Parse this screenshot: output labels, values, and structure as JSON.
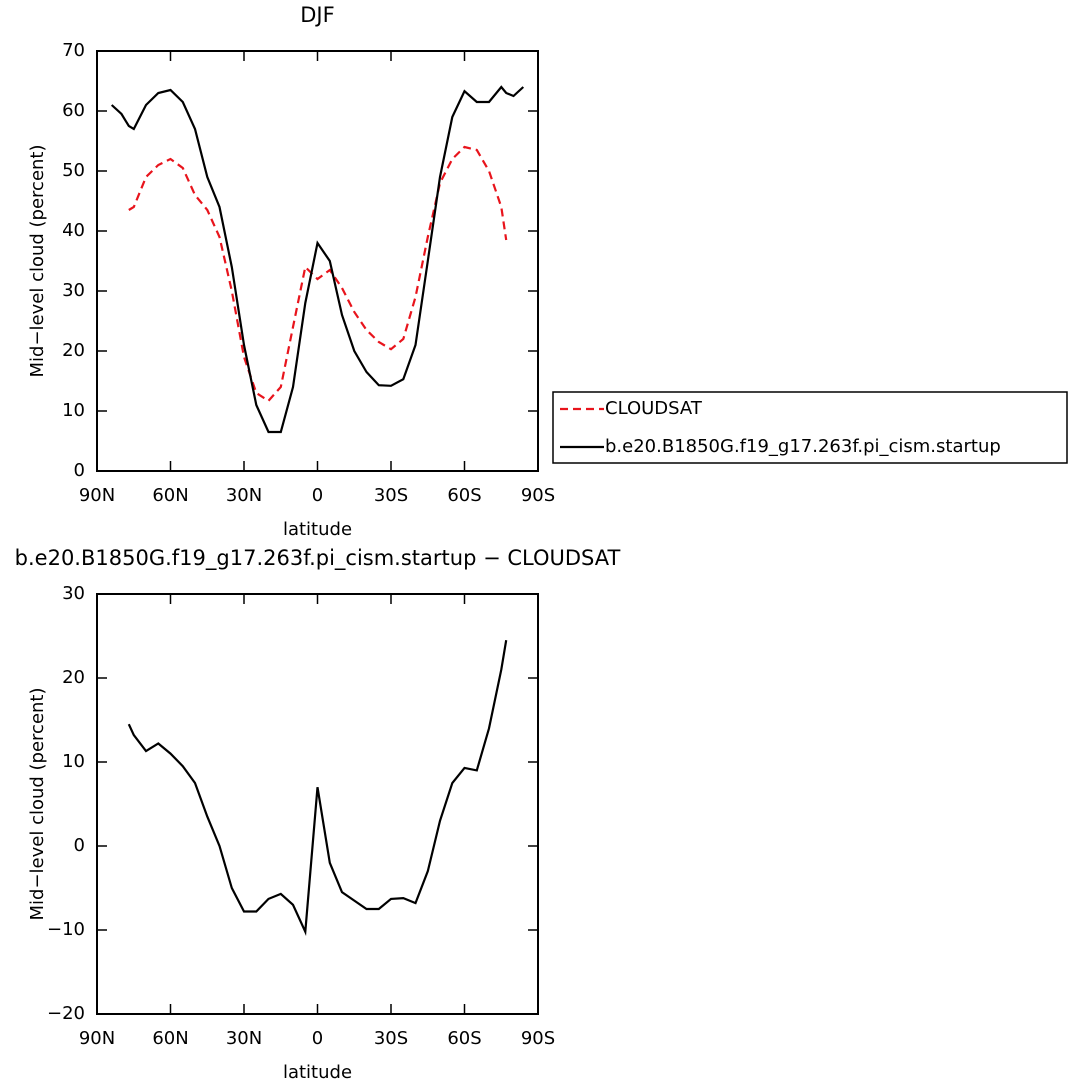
{
  "chart_data": [
    {
      "type": "line",
      "title": "DJF",
      "xlabel": "latitude",
      "ylabel": "Mid−level cloud (percent)",
      "x": [
        84,
        80,
        77,
        75,
        70,
        65,
        60,
        55,
        50,
        45,
        40,
        35,
        30,
        25,
        20,
        15,
        10,
        5,
        0,
        -5,
        -10,
        -15,
        -20,
        -25,
        -30,
        -35,
        -40,
        -45,
        -50,
        -55,
        -60,
        -65,
        -70,
        -75,
        -77,
        -80,
        -84
      ],
      "xlim": [
        90,
        -90
      ],
      "xticks": [
        {
          "value": 90,
          "label": "90N"
        },
        {
          "value": 60,
          "label": "60N"
        },
        {
          "value": 30,
          "label": "30N"
        },
        0,
        {
          "value": -30,
          "label": "30S"
        },
        {
          "value": -60,
          "label": "60S"
        },
        {
          "value": -90,
          "label": "90S"
        }
      ],
      "ylim": [
        0,
        70
      ],
      "yticks": [
        0,
        10,
        20,
        30,
        40,
        50,
        60,
        70
      ],
      "legend": "right",
      "series": [
        {
          "name": "CLOUDSAT",
          "color": "#e8141c",
          "dashed": true,
          "values": [
            null,
            null,
            43.5,
            44,
            49,
            51,
            52,
            50.5,
            46,
            43.5,
            39,
            30,
            19,
            13,
            11.7,
            14,
            24,
            34,
            32,
            33.5,
            30.5,
            26.5,
            23.5,
            21.5,
            20.3,
            22,
            29,
            39,
            48,
            52,
            54,
            53.5,
            50,
            44,
            38.5,
            null,
            null
          ]
        },
        {
          "name": "b.e20.B1850G.f19_g17.263f.pi_cism.startup",
          "color": "#000000",
          "dashed": false,
          "values": [
            61,
            59.5,
            57.5,
            57,
            61,
            63,
            63.5,
            61.5,
            57,
            49,
            44,
            34,
            21,
            11,
            6.5,
            6.5,
            14,
            28,
            38,
            35,
            26,
            20,
            16.5,
            14.3,
            14.2,
            15.3,
            21,
            35,
            49,
            59,
            63.3,
            61.5,
            61.5,
            64,
            63,
            62.5,
            64
          ]
        }
      ]
    },
    {
      "type": "line",
      "title": "b.e20.B1850G.f19_g17.263f.pi_cism.startup − CLOUDSAT",
      "xlabel": "latitude",
      "ylabel": "Mid−level cloud (percent)",
      "x": [
        84,
        80,
        77,
        75,
        70,
        65,
        60,
        55,
        50,
        45,
        40,
        35,
        30,
        25,
        20,
        15,
        10,
        5,
        0,
        -5,
        -10,
        -15,
        -20,
        -25,
        -30,
        -35,
        -40,
        -45,
        -50,
        -55,
        -60,
        -65,
        -70,
        -75,
        -77,
        -80,
        -84
      ],
      "xlim": [
        90,
        -90
      ],
      "xticks": [
        {
          "value": 90,
          "label": "90N"
        },
        {
          "value": 60,
          "label": "60N"
        },
        {
          "value": 30,
          "label": "30N"
        },
        0,
        {
          "value": -30,
          "label": "30S"
        },
        {
          "value": -60,
          "label": "60S"
        },
        {
          "value": -90,
          "label": "90S"
        }
      ],
      "ylim": [
        -20,
        30
      ],
      "yticks": [
        {
          "value": -20,
          "label": "−20"
        },
        {
          "value": -10,
          "label": "−10"
        },
        0,
        10,
        20,
        30
      ],
      "series": [
        {
          "color": "#000000",
          "dashed": false,
          "values": [
            null,
            null,
            14.5,
            13.2,
            11.3,
            12.2,
            11,
            9.5,
            7.5,
            3.5,
            0,
            -5,
            -7.8,
            -7.8,
            -6.3,
            -5.7,
            -7,
            -10.2,
            7,
            -2,
            -5.5,
            -6.5,
            -7.5,
            -7.5,
            -6.3,
            -6.2,
            -6.8,
            -3,
            3,
            7.5,
            9.3,
            9,
            14,
            21,
            24.5,
            null,
            null
          ]
        }
      ]
    }
  ]
}
